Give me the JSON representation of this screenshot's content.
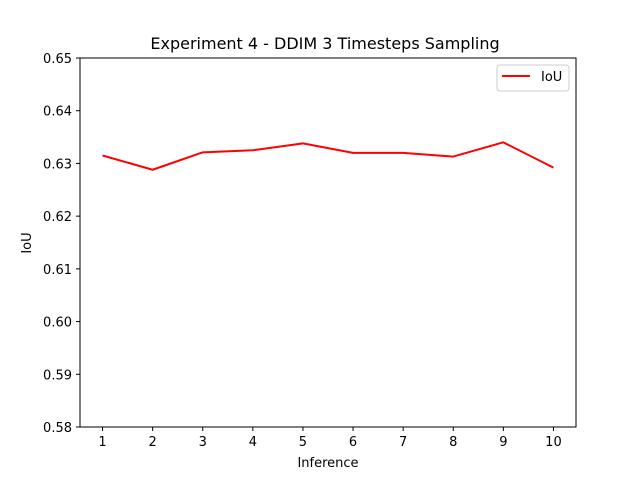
{
  "chart_data": {
    "type": "line",
    "title": "Experiment 4 - DDIM 3 Timesteps Sampling",
    "xlabel": "Inference",
    "ylabel": "IoU",
    "x": [
      1,
      2,
      3,
      4,
      5,
      6,
      7,
      8,
      9,
      10
    ],
    "xlim": [
      0.55,
      10.45
    ],
    "ylim": [
      0.58,
      0.65
    ],
    "x_ticks": [
      "1",
      "2",
      "3",
      "4",
      "5",
      "6",
      "7",
      "8",
      "9",
      "10"
    ],
    "y_ticks": [
      "0.58",
      "0.59",
      "0.60",
      "0.61",
      "0.62",
      "0.63",
      "0.64",
      "0.65"
    ],
    "grid": false,
    "legend_position": "upper right",
    "series": [
      {
        "name": "IoU",
        "color": "#ff0000",
        "values": [
          0.6315,
          0.6288,
          0.6321,
          0.6325,
          0.6338,
          0.632,
          0.632,
          0.6313,
          0.634,
          0.6292
        ]
      }
    ]
  }
}
